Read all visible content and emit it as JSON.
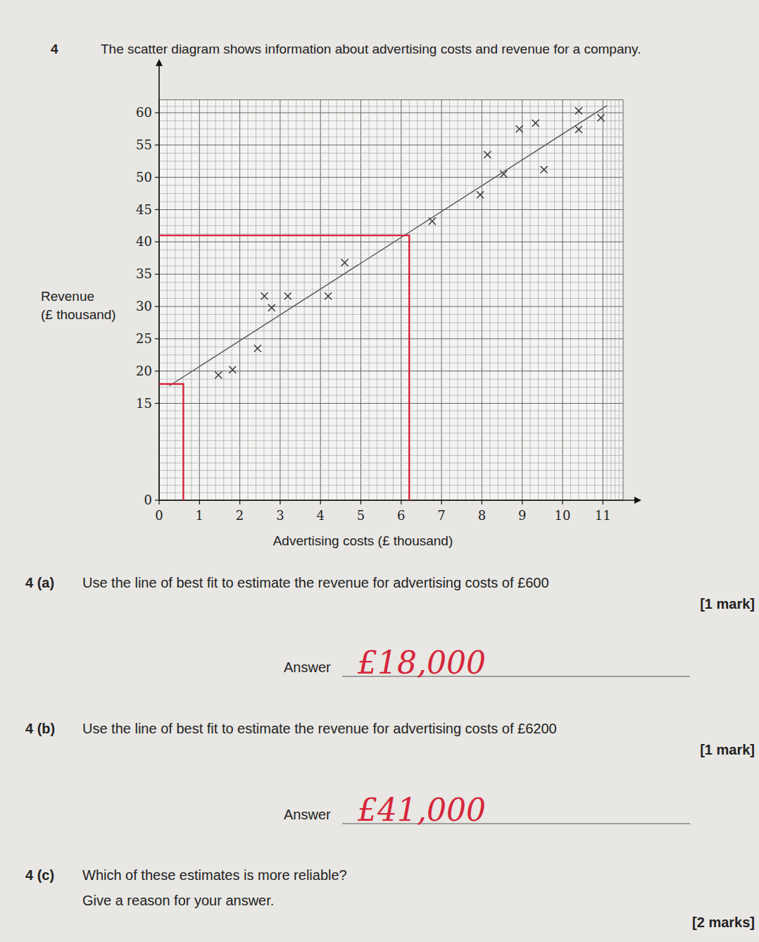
{
  "chart_data": {
    "type": "scatter",
    "x_label": "Advertising costs (£ thousand)",
    "y_label": [
      "Revenue",
      "(£ thousand)"
    ],
    "xlim": [
      0,
      11.5
    ],
    "ylim": [
      0,
      62
    ],
    "xticks": [
      0,
      1,
      2,
      3,
      4,
      5,
      6,
      7,
      8,
      9,
      10,
      11
    ],
    "yticks": [
      0,
      15,
      20,
      25,
      30,
      35,
      40,
      45,
      50,
      55,
      60
    ],
    "grid": true,
    "series": [
      {
        "type": "scatter",
        "marker": "x",
        "color": "#333333",
        "x": [
          1.47,
          1.82,
          2.44,
          2.61,
          2.79,
          3.19,
          4.19,
          4.6,
          6.77,
          7.96,
          8.14,
          8.54,
          8.93,
          9.33,
          9.54,
          10.4,
          10.4,
          10.95
        ],
        "values": [
          19.4,
          20.2,
          23.5,
          31.6,
          29.8,
          31.6,
          31.6,
          36.8,
          43.2,
          47.3,
          53.5,
          50.5,
          57.5,
          58.4,
          51.2,
          60.3,
          57.4,
          59.2
        ]
      },
      {
        "type": "line",
        "line_style": "solid",
        "color": "#555555",
        "x": [
          0.25,
          11.1
        ],
        "values": [
          17.7,
          61.1
        ]
      },
      {
        "type": "line",
        "line_style": "solid",
        "color": "#d6263a",
        "x": [
          0.6,
          0.6,
          0
        ],
        "values": [
          0,
          18,
          18
        ]
      },
      {
        "type": "line",
        "line_style": "solid",
        "color": "#d6263a",
        "x": [
          6.2,
          6.2,
          0
        ],
        "values": [
          0,
          41,
          41
        ]
      }
    ]
  },
  "page": {
    "question_number": "4",
    "intro": "The scatter diagram shows information about advertising costs and revenue for a company.",
    "parts": [
      {
        "label": "4 (a)",
        "lines": [
          "Use the line of best fit to estimate the revenue for advertising costs of £600"
        ],
        "marks": "[1 mark]",
        "answer_label": "Answer",
        "answer": "£18,000"
      },
      {
        "label": "4 (b)",
        "lines": [
          "Use the line of best fit to estimate the revenue for advertising costs of £6200"
        ],
        "marks": "[1 mark]",
        "answer_label": "Answer",
        "answer": "£41,000"
      },
      {
        "label": "4 (c)",
        "lines": [
          "Which of these estimates is more reliable?",
          "Give a reason for your answer."
        ],
        "marks": "[2 marks]"
      }
    ]
  }
}
